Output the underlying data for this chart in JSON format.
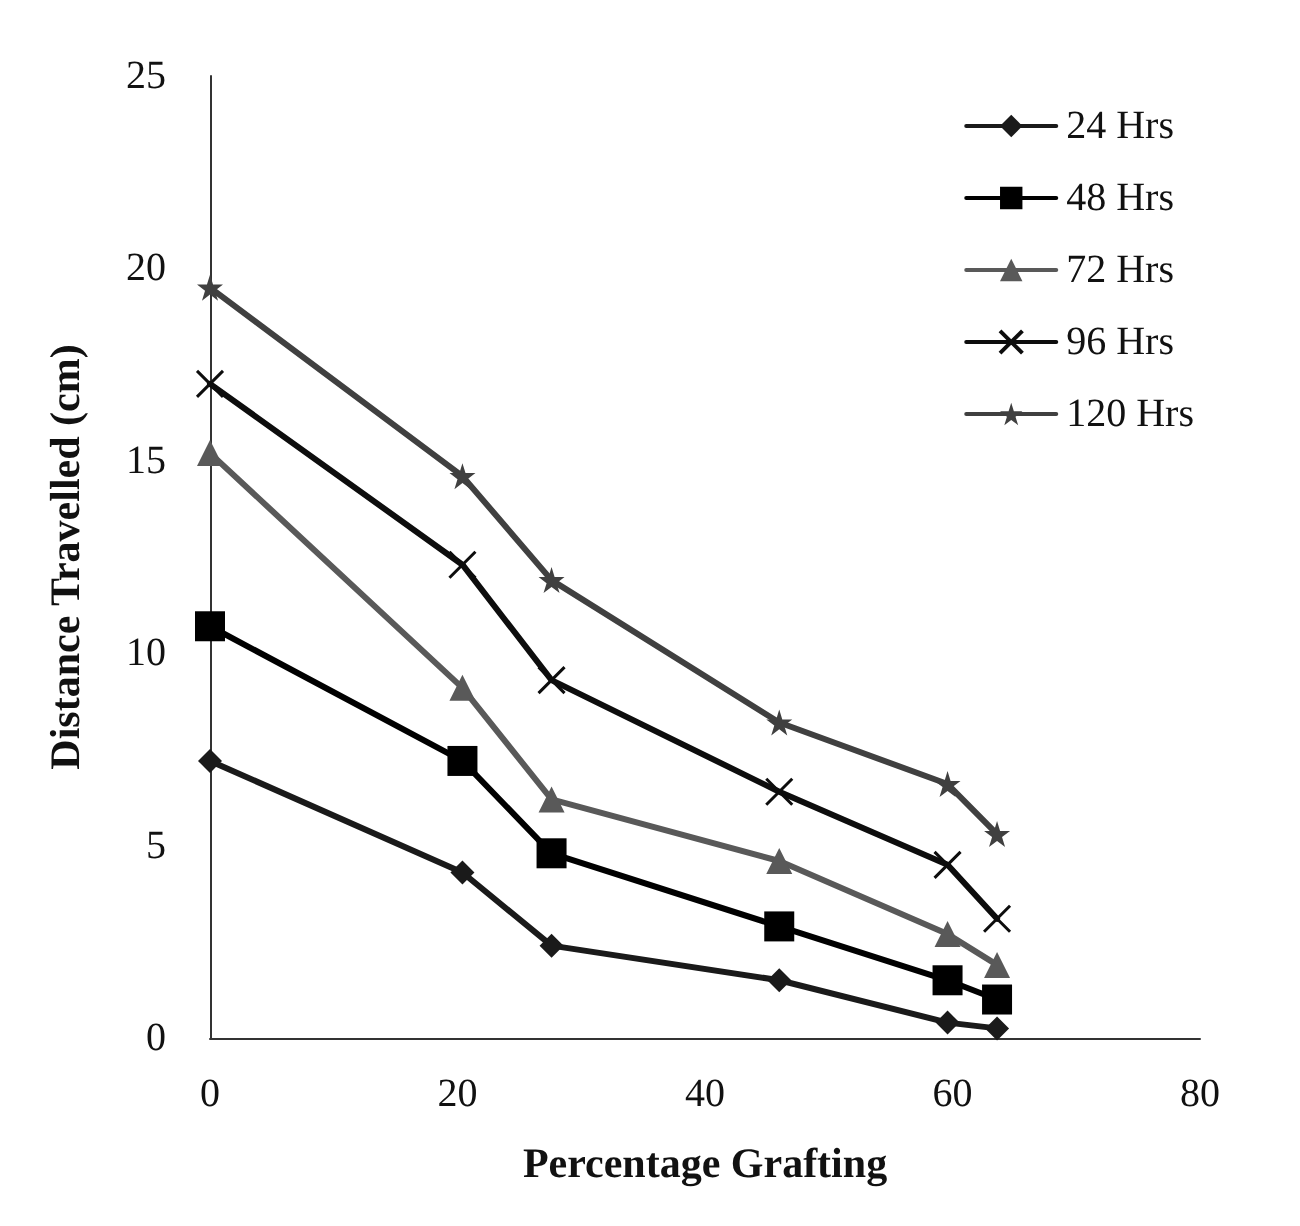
{
  "chart_data": {
    "type": "line",
    "xlabel": "Percentage Grafting",
    "ylabel": "Distance Travelled (cm)",
    "x": [
      0,
      20.4,
      27.6,
      46.0,
      59.6,
      63.6
    ],
    "series": [
      {
        "name": "24 Hrs",
        "color": "#1a1a1a",
        "marker": "diamond",
        "values": [
          7.2,
          4.3,
          2.4,
          1.5,
          0.4,
          0.25
        ]
      },
      {
        "name": "48 Hrs",
        "color": "#000000",
        "marker": "square",
        "values": [
          10.7,
          7.2,
          4.8,
          2.9,
          1.5,
          1.0
        ]
      },
      {
        "name": "72 Hrs",
        "color": "#595959",
        "marker": "triangle",
        "values": [
          15.2,
          9.1,
          6.2,
          4.6,
          2.7,
          1.9
        ]
      },
      {
        "name": "96 Hrs",
        "color": "#0d0d0d",
        "marker": "cross",
        "values": [
          17.0,
          12.3,
          9.3,
          6.4,
          4.5,
          3.1
        ]
      },
      {
        "name": "120 Hrs",
        "color": "#404040",
        "marker": "star",
        "values": [
          19.5,
          14.6,
          11.9,
          8.2,
          6.6,
          5.3
        ]
      }
    ],
    "xlim": [
      0,
      80
    ],
    "xticks": [
      0,
      20,
      40,
      60,
      80
    ],
    "ylim": [
      0,
      25
    ],
    "yticks": [
      0,
      5,
      10,
      15,
      20,
      25
    ],
    "grid": false,
    "legend": "top right",
    "line_style": "solid"
  }
}
